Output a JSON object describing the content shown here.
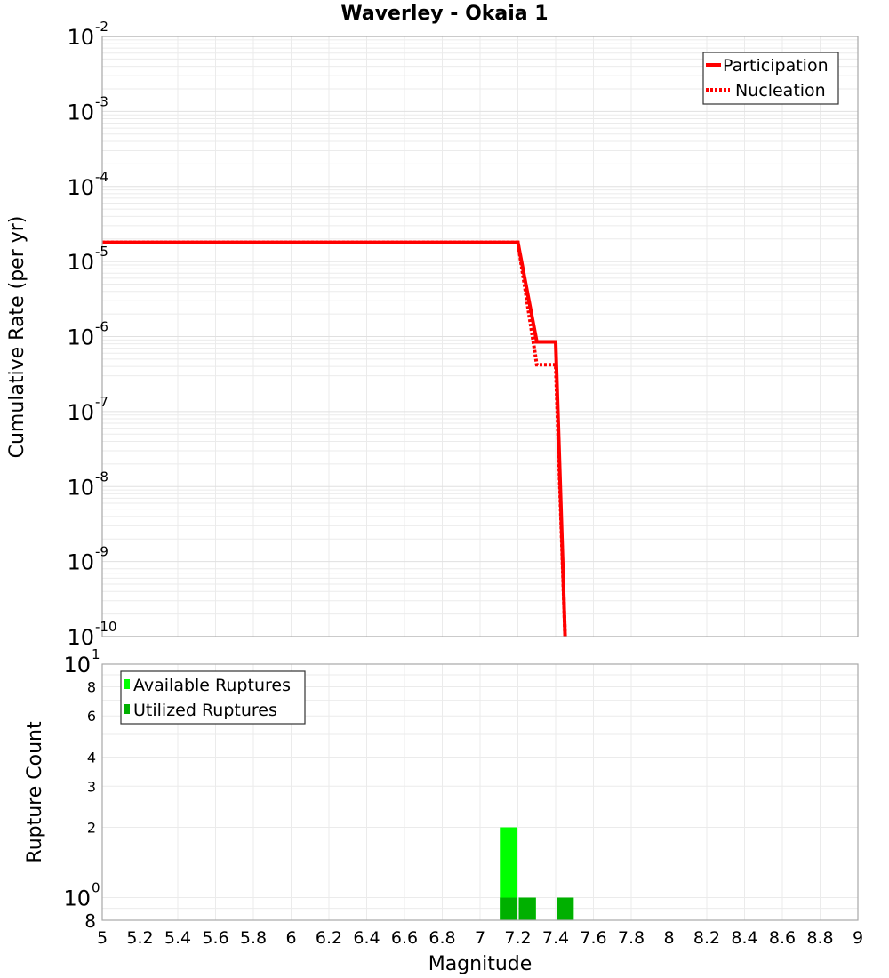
{
  "chart_data": [
    {
      "type": "line",
      "title": "Waverley - Okaia 1",
      "xlabel": "Magnitude",
      "ylabel": "Cumulative Rate (per yr)",
      "yscale": "log",
      "xlim": [
        5,
        9
      ],
      "ylim": [
        1e-10,
        0.01
      ],
      "grid": true,
      "legend_position": "upper right",
      "y_ticks": [
        "10^-2",
        "10^-3",
        "10^-4",
        "10^-5",
        "10^-6",
        "10^-7",
        "10^-8",
        "10^-9",
        "10^-10"
      ],
      "series": [
        {
          "name": "Participation",
          "style": "solid",
          "color": "#ff0000",
          "x": [
            5.0,
            7.2,
            7.3,
            7.4,
            7.45
          ],
          "y": [
            1.8e-05,
            1.8e-05,
            8.5e-07,
            8.5e-07,
            1e-10
          ]
        },
        {
          "name": "Nucleation",
          "style": "dotted",
          "color": "#ff0000",
          "x": [
            5.0,
            7.2,
            7.3,
            7.4,
            7.45
          ],
          "y": [
            1.8e-05,
            1.8e-05,
            4.2e-07,
            4.2e-07,
            1e-10
          ]
        }
      ]
    },
    {
      "type": "bar",
      "xlabel": "Magnitude",
      "ylabel": "Rupture Count",
      "yscale": "log",
      "xlim": [
        5,
        9
      ],
      "ylim": [
        0.8,
        10
      ],
      "grid": true,
      "legend_position": "upper left",
      "x_ticks": [
        "5",
        "5.2",
        "5.4",
        "5.6",
        "5.8",
        "6",
        "6.2",
        "6.4",
        "6.6",
        "6.8",
        "7",
        "7.2",
        "7.4",
        "7.6",
        "7.8",
        "8",
        "8.2",
        "8.4",
        "8.6",
        "8.8",
        "9"
      ],
      "y_ticks": [
        "8",
        "10^0",
        "2",
        "3",
        "4",
        "6",
        "8",
        "10^1"
      ],
      "bin_width": 0.1,
      "series": [
        {
          "name": "Available Ruptures",
          "color": "#00ff00",
          "x": [
            7.15,
            7.25,
            7.45
          ],
          "values": [
            2,
            1,
            1
          ]
        },
        {
          "name": "Utilized Ruptures",
          "color": "#00b000",
          "x": [
            7.15,
            7.25,
            7.45
          ],
          "values": [
            1,
            1,
            1
          ]
        }
      ]
    }
  ],
  "labels": {
    "title": "Waverley - Okaia 1",
    "top_ylabel": "Cumulative Rate (per yr)",
    "bottom_ylabel": "Rupture Count",
    "xlabel": "Magnitude",
    "legend_participation": "Participation",
    "legend_nucleation": "Nucleation",
    "legend_available": "Available Ruptures",
    "legend_utilized": "Utilized Ruptures"
  }
}
